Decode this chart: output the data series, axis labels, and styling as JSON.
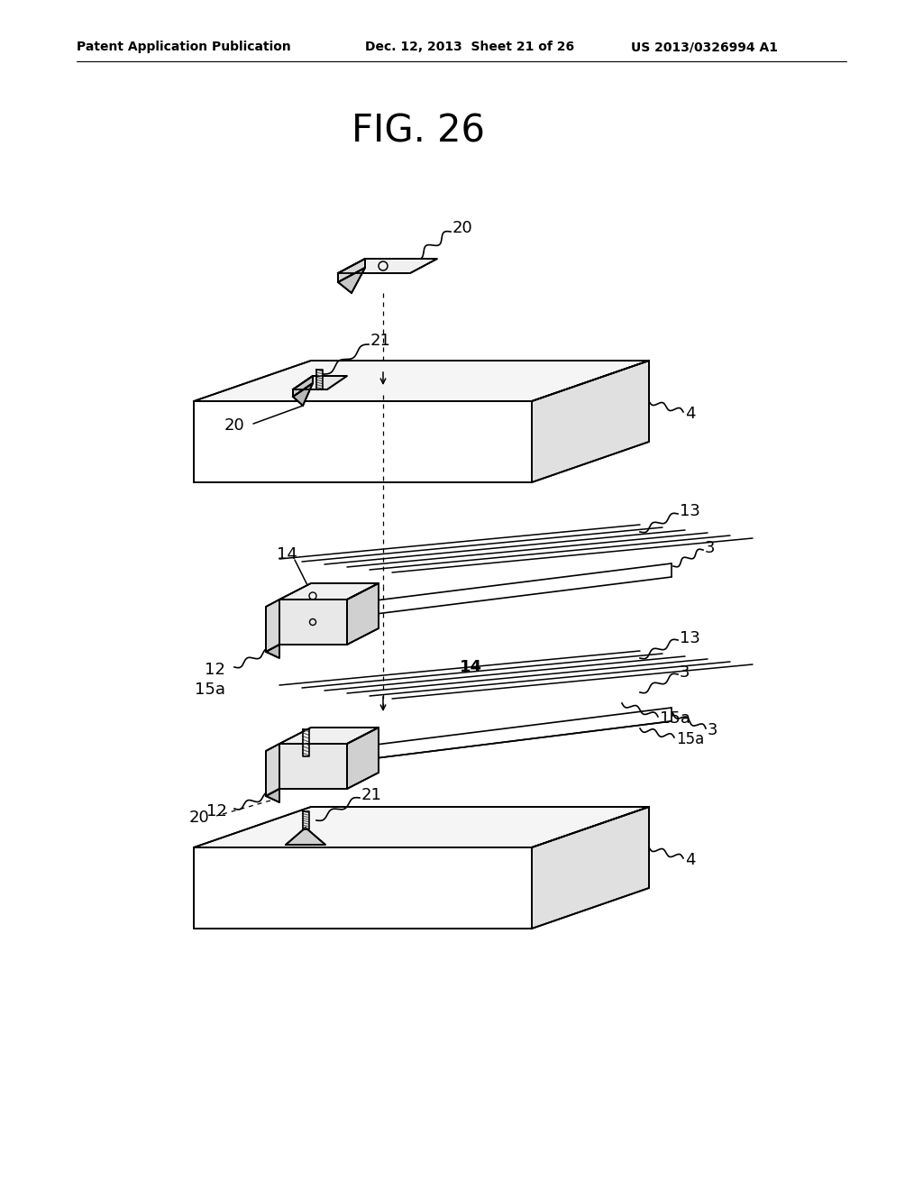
{
  "bg_color": "#ffffff",
  "line_color": "#000000",
  "lw": 1.3,
  "header_left": "Patent Application Publication",
  "header_mid": "Dec. 12, 2013  Sheet 21 of 26",
  "header_right": "US 2013/0326994 A1",
  "fig_label": "FIG. 26"
}
